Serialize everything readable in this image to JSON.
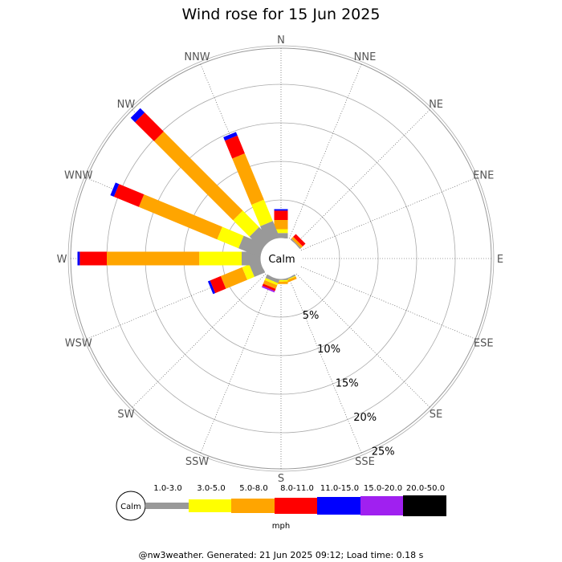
{
  "chart_data": {
    "type": "wind-rose",
    "title": "Wind rose for 15 Jun 2025",
    "directions": [
      "N",
      "NNE",
      "NE",
      "ENE",
      "E",
      "ESE",
      "SE",
      "SSE",
      "S",
      "SSW",
      "SW",
      "WSW",
      "W",
      "WNW",
      "NW",
      "NNW"
    ],
    "ring_values": [
      5,
      10,
      15,
      20,
      25
    ],
    "ring_labels": [
      "5%",
      "10%",
      "15%",
      "20%",
      "25%"
    ],
    "calm_label": "Calm",
    "unit_label": "mph",
    "speed_bins": [
      "1.0-3.0",
      "3.0-5.0",
      "5.0-8.0",
      "8.0-11.0",
      "11.0-15.0",
      "15.0-20.0",
      "20.0-50.0"
    ],
    "bin_colors": [
      "#999999",
      "#ffff00",
      "#ffa500",
      "#ff0000",
      "#0000ff",
      "#a020f0",
      "#000000"
    ],
    "series": [
      {
        "direction": "N",
        "values": [
          0.7,
          0.5,
          1.2,
          1.2,
          0.2,
          0,
          0
        ]
      },
      {
        "direction": "NNE",
        "values": [
          0,
          0,
          0,
          0,
          0,
          0,
          0
        ]
      },
      {
        "direction": "NE",
        "values": [
          0.2,
          0,
          0.3,
          0.5,
          0,
          0,
          0
        ]
      },
      {
        "direction": "ENE",
        "values": [
          0,
          0,
          0,
          0,
          0,
          0,
          0
        ]
      },
      {
        "direction": "E",
        "values": [
          0,
          0,
          0,
          0,
          0,
          0,
          0
        ]
      },
      {
        "direction": "ESE",
        "values": [
          0,
          0,
          0,
          0,
          0,
          0,
          0
        ]
      },
      {
        "direction": "SE",
        "values": [
          0,
          0,
          0,
          0,
          0,
          0,
          0
        ]
      },
      {
        "direction": "SSE",
        "values": [
          0.2,
          0.1,
          0.3,
          0,
          0,
          0,
          0
        ]
      },
      {
        "direction": "S",
        "values": [
          0.2,
          0.2,
          0.3,
          0,
          0,
          0,
          0
        ]
      },
      {
        "direction": "SSW",
        "values": [
          0.5,
          0.3,
          0.5,
          0.3,
          0,
          0.2,
          0
        ]
      },
      {
        "direction": "SW",
        "values": [
          0,
          0,
          0,
          0,
          0,
          0,
          0
        ]
      },
      {
        "direction": "WSW",
        "values": [
          1.5,
          1.0,
          3.0,
          1.5,
          0.3,
          0,
          0
        ]
      },
      {
        "direction": "W",
        "values": [
          2.5,
          5.5,
          12.0,
          3.5,
          0.3,
          0,
          0
        ]
      },
      {
        "direction": "WNW",
        "values": [
          3.0,
          3.0,
          11.0,
          3.5,
          0.5,
          0,
          0
        ]
      },
      {
        "direction": "NW",
        "values": [
          2.3,
          3.0,
          14.5,
          3.5,
          0.8,
          0,
          0
        ]
      },
      {
        "direction": "NNW",
        "values": [
          2.3,
          3.0,
          6.5,
          2.5,
          0.5,
          0,
          0
        ]
      }
    ]
  },
  "footer": "@nw3weather. Generated: 21 Jun 2025 09:12; Load time: 0.18 s"
}
